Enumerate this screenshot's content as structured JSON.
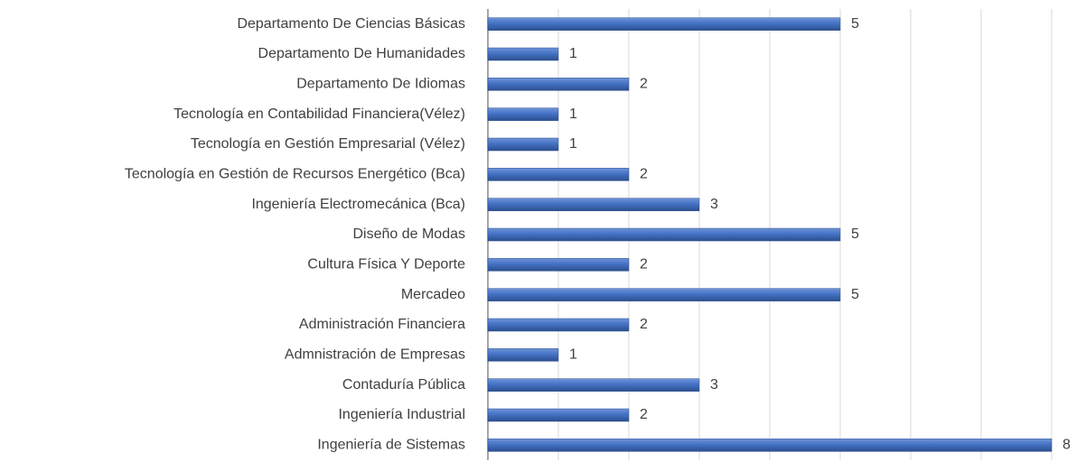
{
  "chart_data": {
    "type": "bar",
    "orientation": "horizontal",
    "categories": [
      "Departamento De Ciencias Básicas",
      "Departamento De Humanidades",
      "Departamento De Idiomas",
      "Tecnología en Contabilidad Financiera(Vélez)",
      "Tecnología en Gestión Empresarial (Vélez)",
      "Tecnología en Gestión de Recursos Energético (Bca)",
      "Ingeniería Electromecánica (Bca)",
      "Diseño de Modas",
      "Cultura Física Y Deporte ",
      "Mercadeo",
      "Administración Financiera",
      "Admnistración de Empresas",
      "Contaduría Pública",
      "Ingeniería Industrial",
      "Ingeniería de Sistemas"
    ],
    "values": [
      5,
      1,
      2,
      1,
      1,
      2,
      3,
      5,
      2,
      5,
      2,
      1,
      3,
      2,
      8
    ],
    "color": "#4472c4",
    "xlim": [
      0,
      8
    ],
    "xticks": [
      0,
      1,
      2,
      3,
      4,
      5,
      6,
      7,
      8
    ],
    "grid": true
  }
}
